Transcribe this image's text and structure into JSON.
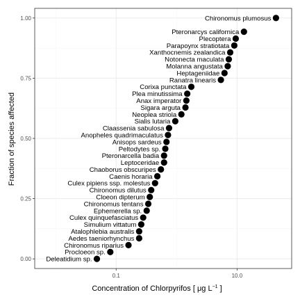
{
  "chart_data": {
    "type": "scatter",
    "title": "",
    "xlabel": "Concentration of Chlorpyrifos [ μg L",
    "xlabel_superscript": "−1",
    "xlabel_suffix": " ]",
    "ylabel": "Fraction of species affected",
    "x_scale": "log10",
    "xlim": [
      0.0045,
      80
    ],
    "ylim": [
      -0.04,
      1.04
    ],
    "x_ticks": [
      {
        "value": 0.1,
        "label": "0.1"
      },
      {
        "value": 10,
        "label": "10.0"
      }
    ],
    "y_ticks": [
      {
        "value": 0.0,
        "label": "0.00"
      },
      {
        "value": 0.25,
        "label": "0.25"
      },
      {
        "value": 0.5,
        "label": "0.50"
      },
      {
        "value": 0.75,
        "label": "0.75"
      },
      {
        "value": 1.0,
        "label": "1.00"
      }
    ],
    "grid": true,
    "legend": "none",
    "point_color": "#000000",
    "points": [
      {
        "species": "Deleatidium sp.",
        "x": 0.048,
        "y": 0.0
      },
      {
        "species": "Procloeon sp.",
        "x": 0.08,
        "y": 0.0286
      },
      {
        "species": "Chironomus riparius",
        "x": 0.16,
        "y": 0.0571
      },
      {
        "species": "Aedes taeniorhynchus",
        "x": 0.24,
        "y": 0.0857
      },
      {
        "species": "Atalophlebia australis",
        "x": 0.24,
        "y": 0.1143
      },
      {
        "species": "Simulium vittatum",
        "x": 0.26,
        "y": 0.1429
      },
      {
        "species": "Culex quinquefasciatus",
        "x": 0.28,
        "y": 0.1714
      },
      {
        "species": "Ephemerella sp.",
        "x": 0.32,
        "y": 0.2
      },
      {
        "species": "Chironomus tentans",
        "x": 0.34,
        "y": 0.2286
      },
      {
        "species": "Cloeon dipterum",
        "x": 0.36,
        "y": 0.2571
      },
      {
        "species": "Chironomus dilutus",
        "x": 0.38,
        "y": 0.2857
      },
      {
        "species": "Culex pipiens ssp. molestus",
        "x": 0.44,
        "y": 0.3143
      },
      {
        "species": "Caenis horaria",
        "x": 0.48,
        "y": 0.3429
      },
      {
        "species": "Chaoborus obscuripes",
        "x": 0.55,
        "y": 0.3714
      },
      {
        "species": "Leptoceridae",
        "x": 0.62,
        "y": 0.4
      },
      {
        "species": "Pteronarcella badia",
        "x": 0.62,
        "y": 0.4286
      },
      {
        "species": "Peltodytes sp.",
        "x": 0.65,
        "y": 0.4571
      },
      {
        "species": "Anisops sardeus",
        "x": 0.68,
        "y": 0.4857
      },
      {
        "species": "Anopheles quadrimaculatus",
        "x": 0.72,
        "y": 0.5143
      },
      {
        "species": "Claassenia sabulosa",
        "x": 0.75,
        "y": 0.5429
      },
      {
        "species": "Sialis lutaria",
        "x": 0.95,
        "y": 0.5714
      },
      {
        "species": "Neoplea striola",
        "x": 1.2,
        "y": 0.6
      },
      {
        "species": "Sigara arguta",
        "x": 1.4,
        "y": 0.6286
      },
      {
        "species": "Anax imperator",
        "x": 1.45,
        "y": 0.6571
      },
      {
        "species": "Plea minutissima",
        "x": 1.5,
        "y": 0.6857
      },
      {
        "species": "Corixa punctata",
        "x": 1.75,
        "y": 0.7143
      },
      {
        "species": "Ranatra linearis",
        "x": 5.4,
        "y": 0.7429
      },
      {
        "species": "Heptageniidae",
        "x": 6.2,
        "y": 0.7714
      },
      {
        "species": "Molanna angustata",
        "x": 7.0,
        "y": 0.8
      },
      {
        "species": "Notonecta maculata",
        "x": 7.3,
        "y": 0.8286
      },
      {
        "species": "Xanthocnemis zealandica",
        "x": 7.7,
        "y": 0.8571
      },
      {
        "species": "Parapoynx stratiotata",
        "x": 9.0,
        "y": 0.8857
      },
      {
        "species": "Plecoptera",
        "x": 9.5,
        "y": 0.9143
      },
      {
        "species": "Pteronarcys californica",
        "x": 13.0,
        "y": 0.9429
      },
      {
        "species": "Chironomus plumosus",
        "x": 44.0,
        "y": 1.0
      }
    ]
  }
}
